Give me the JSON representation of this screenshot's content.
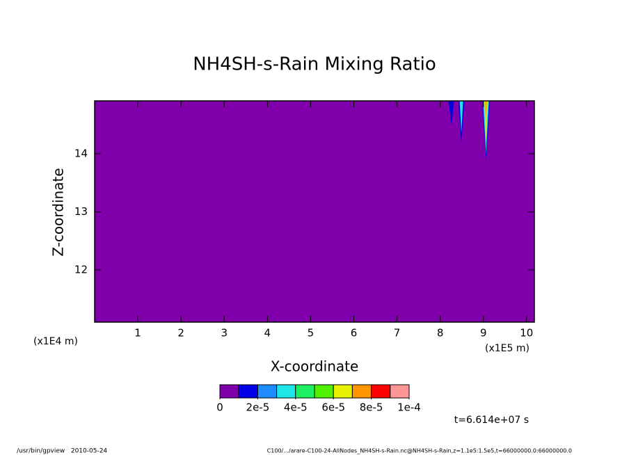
{
  "chart_data": {
    "type": "contour",
    "title": "NH4SH-s-Rain Mixing Ratio",
    "x_label": "X-coordinate",
    "y_label": "Z-coordinate",
    "x_unit": "(x1E5 m)",
    "y_unit": "(x1E4 m)",
    "xlim": [
      0,
      10.18
    ],
    "ylim": [
      11.1,
      14.91
    ],
    "xticks": [
      1,
      2,
      3,
      4,
      5,
      6,
      7,
      8,
      9,
      10
    ],
    "yticks": [
      12,
      13,
      14
    ],
    "background_color": "#7f00aa",
    "shapes": [
      {
        "color": "#0000e6",
        "x": [
          8.19,
          8.32,
          8.26
        ],
        "y": [
          14.91,
          14.91,
          14.5
        ]
      },
      {
        "color": "#0000e6",
        "x": [
          8.42,
          8.56,
          8.49
        ],
        "y": [
          14.91,
          14.91,
          14.17
        ]
      },
      {
        "color": "#1ee6e6",
        "x": [
          8.45,
          8.53,
          8.49
        ],
        "y": [
          14.91,
          14.91,
          14.35
        ]
      },
      {
        "color": "#0000e6",
        "x": [
          8.97,
          9.15,
          9.06
        ],
        "y": [
          14.91,
          14.91,
          13.9
        ]
      },
      {
        "color": "#1ee6e6",
        "x": [
          8.99,
          9.13,
          9.06
        ],
        "y": [
          14.91,
          14.91,
          14.0
        ]
      },
      {
        "color": "#e6f000",
        "x": [
          9.02,
          9.1,
          9.06
        ],
        "y": [
          14.91,
          14.91,
          14.2
        ]
      },
      {
        "color": "#ff9600",
        "x": [
          9.04,
          9.08,
          9.06
        ],
        "y": [
          14.91,
          14.91,
          14.5
        ]
      }
    ],
    "colorbar": {
      "range": [
        0,
        0.0001
      ],
      "colors": [
        "#7f00aa",
        "#0000e6",
        "#1e8cff",
        "#1ee6e6",
        "#1ef064",
        "#50f000",
        "#e6f000",
        "#ff9600",
        "#ff0000",
        "#ff9696"
      ],
      "ticks": [
        0,
        {
          "value": 2e-05,
          "label": "2e-5"
        },
        {
          "value": 4e-05,
          "label": "4e-5"
        },
        {
          "value": 6e-05,
          "label": "6e-5"
        },
        {
          "value": 8e-05,
          "label": "8e-5"
        },
        {
          "value": 0.0001,
          "label": "1e-4"
        }
      ]
    },
    "time_label": "t=6.614e+07 s",
    "footer_left": "/usr/bin/gpview   2010-05-24",
    "footer_right": "C100/.../arare-C100-24-AllNodes_NH4SH-s-Rain.nc@NH4SH-s-Rain,z=1.1e5:1.5e5,t=66000000.0:66000000.0"
  }
}
